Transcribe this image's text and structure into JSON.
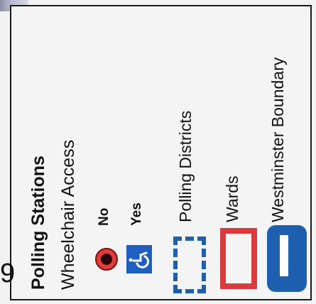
{
  "legend": {
    "title": "Polling Stations",
    "subtitle": "Wheelchair Access",
    "access_items": [
      {
        "label": "No",
        "icon": "red-dot-icon",
        "color": "#c0262d"
      },
      {
        "label": "Yes",
        "icon": "wheelchair-icon",
        "color": "#1e5fbf"
      }
    ],
    "boundary_items": [
      {
        "label": "Polling Districts",
        "icon": "dashed-rectangle-icon",
        "color": "#1f5fb0"
      },
      {
        "label": "Wards",
        "icon": "red-rectangle-icon",
        "color": "#d83d3d"
      },
      {
        "label": "Westminster Boundary",
        "icon": "blue-rectangle-icon",
        "color": "#1f5fb0"
      }
    ]
  },
  "map_fragment_number": "9"
}
